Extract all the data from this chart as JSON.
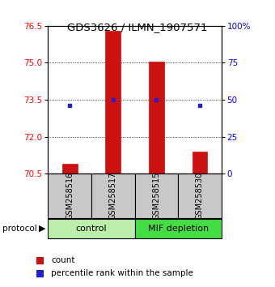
{
  "title": "GDS3626 / ILMN_1907571",
  "samples": [
    "GSM258516",
    "GSM258517",
    "GSM258515",
    "GSM258530"
  ],
  "count_values": [
    70.9,
    76.3,
    75.05,
    71.4
  ],
  "percentile_values": [
    73.28,
    73.5,
    73.5,
    73.28
  ],
  "ylim_left": [
    70.5,
    76.5
  ],
  "yticks_left": [
    70.5,
    72,
    73.5,
    75,
    76.5
  ],
  "yticks_right": [
    0,
    25,
    50,
    75,
    100
  ],
  "bar_color": "#cc1111",
  "dot_color": "#2222cc",
  "bar_bottom": 70.5,
  "ctrl_color": "#bbeeaa",
  "mif_color": "#44dd44",
  "sample_box_color": "#c8c8c8",
  "title_fontsize": 9.5,
  "tick_fontsize": 7.5,
  "sample_fontsize": 7,
  "protocol_fontsize": 8,
  "legend_fontsize": 7.5
}
